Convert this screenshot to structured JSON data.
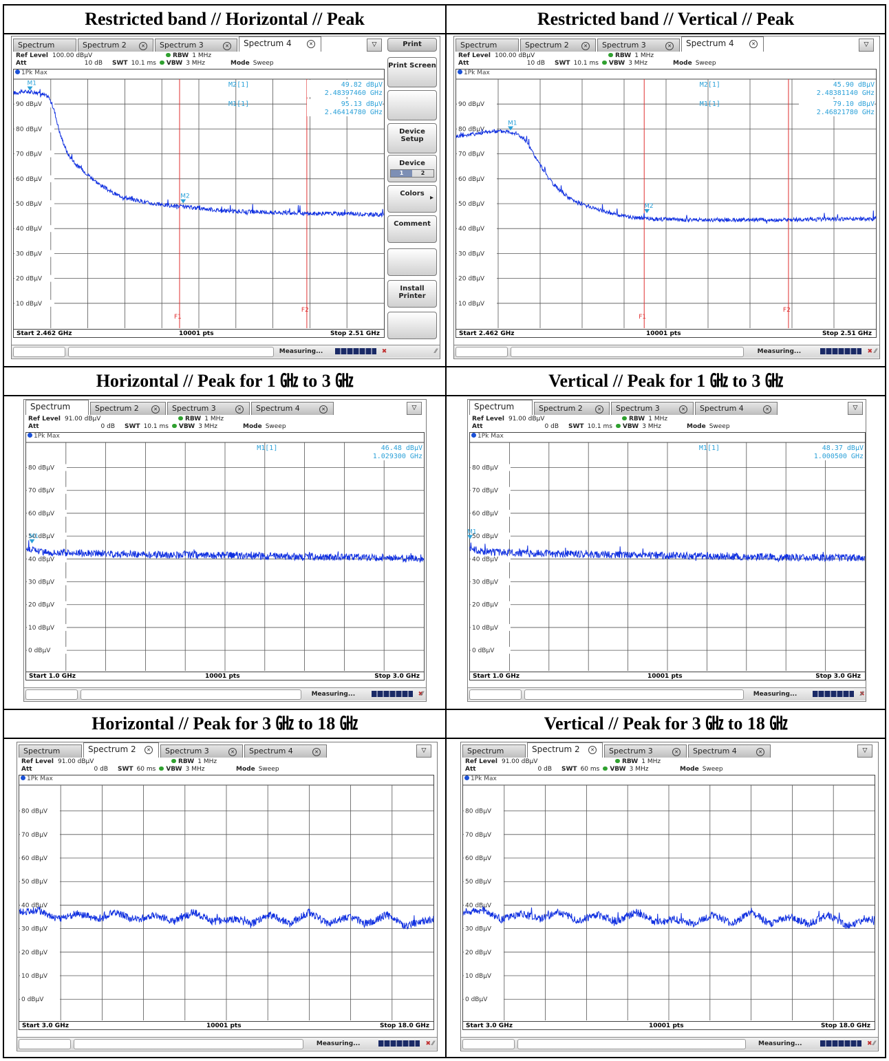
{
  "panels": [
    {
      "title": "Restricted band // Horizontal // Peak",
      "tabs": [
        {
          "label": "Spectrum",
          "close": false
        },
        {
          "label": "Spectrum 2",
          "close": true
        },
        {
          "label": "Spectrum 3",
          "close": true
        },
        {
          "label": "Spectrum 4",
          "close": true
        }
      ],
      "active_tab": 3,
      "ref_level_label": "Ref Level",
      "ref_level": "100.00 dBµV",
      "att_label": "Att",
      "att": "10 dB",
      "swt_label": "SWT",
      "swt": "10.1 ms",
      "rbw_label": "RBW",
      "rbw": "1 MHz",
      "vbw_label": "VBW",
      "vbw": "3 MHz",
      "mode_label": "Mode",
      "mode": "Sweep",
      "trace_label": "1Pk Max",
      "marker_readouts": [
        {
          "name": "M2[1]",
          "level": "49.82 dBµV",
          "freq": "2.48397460 GHz"
        },
        {
          "name": "M1[1]",
          "level": "95.13 dBµV",
          "freq": "2.46414780 GHz"
        }
      ],
      "start": "Start 2.462 GHz",
      "pts": "10001 pts",
      "stop": "Stop 2.51 GHz",
      "status": "Measuring...",
      "softkeys": [
        "Print",
        "Print Screen",
        "",
        "Device Setup",
        "Device",
        "Colors",
        "Comment",
        "",
        "Install Printer",
        ""
      ],
      "device_options": [
        "1",
        "2"
      ],
      "chart_data": {
        "type": "line",
        "xlim": [
          2.462,
          2.51
        ],
        "ylim": [
          0,
          100
        ],
        "yticks": [
          "90 dBµV",
          "80 dBµV",
          "70 dBµV",
          "60 dBµV",
          "50 dBµV",
          "40 dBµV",
          "30 dBµV",
          "20 dBµV",
          "10 dBµV"
        ],
        "trace": {
          "x": [
            2.462,
            2.4635,
            2.465,
            2.4665,
            2.4672,
            2.468,
            2.469,
            2.47,
            2.4715,
            2.473,
            2.475,
            2.477,
            2.48,
            2.483,
            2.4865,
            2.49,
            2.495,
            2.5,
            2.505,
            2.51
          ],
          "y": [
            94.5,
            95,
            94.6,
            93,
            88,
            78,
            70,
            66,
            62,
            58,
            54,
            52,
            50,
            49,
            48,
            47,
            46.5,
            46,
            46,
            45.5
          ]
        },
        "markers": [
          {
            "label": "M1",
            "x": 2.4641,
            "y": 95.13
          },
          {
            "label": "M2",
            "x": 2.48397,
            "y": 49.82
          }
        ],
        "lines": [
          {
            "label": "F1",
            "x": 2.4835
          },
          {
            "label": "F2",
            "x": 2.5
          }
        ]
      }
    },
    {
      "title": "Restricted band // Vertical // Peak",
      "tabs": [
        {
          "label": "Spectrum",
          "close": false
        },
        {
          "label": "Spectrum 2",
          "close": true
        },
        {
          "label": "Spectrum 3",
          "close": true
        },
        {
          "label": "Spectrum 4",
          "close": true
        }
      ],
      "active_tab": 3,
      "ref_level_label": "Ref Level",
      "ref_level": "100.00 dBµV",
      "att_label": "Att",
      "att": "10 dB",
      "swt_label": "SWT",
      "swt": "10.1 ms",
      "rbw_label": "RBW",
      "rbw": "1 MHz",
      "vbw_label": "VBW",
      "vbw": "3 MHz",
      "mode_label": "Mode",
      "mode": "Sweep",
      "trace_label": "1Pk Max",
      "marker_readouts": [
        {
          "name": "M2[1]",
          "level": "45.90 dBµV",
          "freq": "2.48381140 GHz"
        },
        {
          "name": "M1[1]",
          "level": "79.10 dBµV",
          "freq": "2.46821780 GHz"
        }
      ],
      "start": "Start 2.462 GHz",
      "pts": "10001 pts",
      "stop": "Stop 2.51 GHz",
      "status": "Measuring...",
      "chart_data": {
        "type": "line",
        "xlim": [
          2.462,
          2.51
        ],
        "ylim": [
          0,
          100
        ],
        "yticks": [
          "90 dBµV",
          "80 dBµV",
          "70 dBµV",
          "60 dBµV",
          "50 dBµV",
          "40 dBµV",
          "30 dBµV",
          "20 dBµV",
          "10 dBµV"
        ],
        "trace": {
          "x": [
            2.462,
            2.464,
            2.466,
            2.468,
            2.469,
            2.47,
            2.4715,
            2.473,
            2.475,
            2.477,
            2.479,
            2.481,
            2.4838,
            2.488,
            2.495,
            2.5,
            2.505,
            2.51
          ],
          "y": [
            77,
            78,
            79,
            79.1,
            78,
            75,
            66,
            58,
            52,
            49,
            47,
            45,
            44,
            43.5,
            43.5,
            43.5,
            43.8,
            44
          ]
        },
        "markers": [
          {
            "label": "M1",
            "x": 2.46822,
            "y": 79.1
          },
          {
            "label": "M2",
            "x": 2.48381,
            "y": 45.9
          }
        ],
        "lines": [
          {
            "label": "F1",
            "x": 2.4835
          },
          {
            "label": "F2",
            "x": 2.5
          }
        ]
      }
    },
    {
      "title": "Horizontal // Peak for 1 ㎓ to 3 ㎓",
      "tabs": [
        {
          "label": "Spectrum",
          "close": false
        },
        {
          "label": "Spectrum 2",
          "close": true
        },
        {
          "label": "Spectrum 3",
          "close": true
        },
        {
          "label": "Spectrum 4",
          "close": true
        }
      ],
      "active_tab": 0,
      "ref_level_label": "Ref Level",
      "ref_level": "91.00 dBµV",
      "att_label": "Att",
      "att": "0 dB",
      "swt_label": "SWT",
      "swt": "10.1 ms",
      "rbw_label": "RBW",
      "rbw": "1 MHz",
      "vbw_label": "VBW",
      "vbw": "3 MHz",
      "mode_label": "Mode",
      "mode": "Sweep",
      "trace_label": "1Pk Max",
      "marker_readouts": [
        {
          "name": "M1[1]",
          "level": "46.48 dBµV",
          "freq": "1.029300 GHz"
        }
      ],
      "start": "Start 1.0 GHz",
      "pts": "10001 pts",
      "stop": "Stop 3.0 GHz",
      "status": "Measuring...",
      "chart_data": {
        "type": "line",
        "xlim": [
          1.0,
          3.0
        ],
        "ylim": [
          -9,
          91
        ],
        "yticks": [
          "80 dBµV",
          "70 dBµV",
          "60 dBµV",
          "50 dBµV",
          "40 dBµV",
          "30 dBµV",
          "20 dBµV",
          "10 dBµV",
          "0 dBµV"
        ],
        "trace": {
          "x": [
            1.0,
            1.03,
            1.1,
            1.3,
            1.6,
            2.0,
            2.4,
            2.8,
            3.0
          ],
          "y": [
            44.5,
            44,
            43,
            42.5,
            42,
            41.5,
            41,
            40.5,
            40
          ]
        },
        "markers": [
          {
            "label": "M1",
            "x": 1.0293,
            "y": 46.48
          }
        ],
        "lines": []
      }
    },
    {
      "title": "Vertical // Peak for 1 ㎓ to 3 ㎓",
      "tabs": [
        {
          "label": "Spectrum",
          "close": false
        },
        {
          "label": "Spectrum 2",
          "close": true
        },
        {
          "label": "Spectrum 3",
          "close": true
        },
        {
          "label": "Spectrum 4",
          "close": true
        }
      ],
      "active_tab": 0,
      "ref_level_label": "Ref Level",
      "ref_level": "91.00 dBµV",
      "att_label": "Att",
      "att": "0 dB",
      "swt_label": "SWT",
      "swt": "10.1 ms",
      "rbw_label": "RBW",
      "rbw": "1 MHz",
      "vbw_label": "VBW",
      "vbw": "3 MHz",
      "mode_label": "Mode",
      "mode": "Sweep",
      "trace_label": "1Pk Max",
      "marker_readouts": [
        {
          "name": "M1[1]",
          "level": "48.37 dBµV",
          "freq": "1.000500 GHz"
        }
      ],
      "start": "Start 1.0 GHz",
      "pts": "10001 pts",
      "stop": "Stop 3.0 GHz",
      "status": "Measuring...",
      "chart_data": {
        "type": "line",
        "xlim": [
          1.0,
          3.0
        ],
        "ylim": [
          -9,
          91
        ],
        "yticks": [
          "80 dBµV",
          "70 dBµV",
          "60 dBµV",
          "50 dBµV",
          "40 dBµV",
          "30 dBµV",
          "20 dBµV",
          "10 dBµV",
          "0 dBµV"
        ],
        "trace": {
          "x": [
            1.0,
            1.02,
            1.1,
            1.3,
            1.6,
            2.0,
            2.4,
            2.8,
            3.0
          ],
          "y": [
            45,
            44,
            43,
            42.5,
            42,
            41.5,
            41,
            40.5,
            40.5
          ]
        },
        "markers": [
          {
            "label": "M1",
            "x": 1.0005,
            "y": 48.37
          }
        ],
        "lines": []
      }
    },
    {
      "title": "Horizontal // Peak for 3 ㎓ to 18 ㎓",
      "tabs": [
        {
          "label": "Spectrum",
          "close": false
        },
        {
          "label": "Spectrum 2",
          "close": true
        },
        {
          "label": "Spectrum 3",
          "close": true
        },
        {
          "label": "Spectrum 4",
          "close": true
        }
      ],
      "active_tab": 1,
      "ref_level_label": "Ref Level",
      "ref_level": "91.00 dBµV",
      "att_label": "Att",
      "att": "0 dB",
      "swt_label": "SWT",
      "swt": "60 ms",
      "rbw_label": "RBW",
      "rbw": "1 MHz",
      "vbw_label": "VBW",
      "vbw": "3 MHz",
      "mode_label": "Mode",
      "mode": "Sweep",
      "trace_label": "1Pk Max",
      "marker_readouts": [],
      "start": "Start 3.0 GHz",
      "pts": "10001 pts",
      "stop": "Stop 18.0 GHz",
      "status": "Measuring...",
      "chart_data": {
        "type": "line",
        "xlim": [
          3.0,
          18.0
        ],
        "ylim": [
          -9,
          91
        ],
        "yticks": [
          "80 dBµV",
          "70 dBµV",
          "60 dBµV",
          "50 dBµV",
          "40 dBµV",
          "30 dBµV",
          "20 dBµV",
          "10 dBµV",
          "0 dBµV"
        ],
        "trace": {
          "x": [
            3.0,
            3.7,
            4.4,
            5.1,
            5.8,
            6.5,
            7.2,
            7.9,
            8.6,
            9.3,
            10.0,
            10.7,
            11.4,
            12.1,
            12.8,
            13.5,
            14.2,
            14.9,
            15.6,
            16.3,
            17.0,
            17.5,
            18.0
          ],
          "y": [
            37,
            38,
            34,
            36.5,
            34,
            37,
            33.5,
            36,
            33,
            37,
            33,
            34,
            32,
            36,
            32,
            37,
            32,
            35,
            32,
            36,
            31,
            33,
            34
          ]
        },
        "markers": [],
        "lines": []
      }
    },
    {
      "title": "Vertical // Peak for 3 ㎓ to 18 ㎓",
      "tabs": [
        {
          "label": "Spectrum",
          "close": false
        },
        {
          "label": "Spectrum 2",
          "close": true
        },
        {
          "label": "Spectrum 3",
          "close": true
        },
        {
          "label": "Spectrum 4",
          "close": true
        }
      ],
      "active_tab": 1,
      "ref_level_label": "Ref Level",
      "ref_level": "91.00 dBµV",
      "att_label": "Att",
      "att": "0 dB",
      "swt_label": "SWT",
      "swt": "60 ms",
      "rbw_label": "RBW",
      "rbw": "1 MHz",
      "vbw_label": "VBW",
      "vbw": "3 MHz",
      "mode_label": "Mode",
      "mode": "Sweep",
      "trace_label": "1Pk Max",
      "marker_readouts": [],
      "start": "Start 3.0 GHz",
      "pts": "10001 pts",
      "stop": "Stop 18.0 GHz",
      "status": "Measuring...",
      "chart_data": {
        "type": "line",
        "xlim": [
          3.0,
          18.0
        ],
        "ylim": [
          -9,
          91
        ],
        "yticks": [
          "80 dBµV",
          "70 dBµV",
          "60 dBµV",
          "50 dBµV",
          "40 dBµV",
          "30 dBµV",
          "20 dBµV",
          "10 dBµV",
          "0 dBµV"
        ],
        "trace": {
          "x": [
            3.0,
            3.7,
            4.4,
            5.1,
            5.8,
            6.5,
            7.2,
            7.9,
            8.6,
            9.3,
            10.0,
            10.7,
            11.4,
            12.1,
            12.8,
            13.5,
            14.2,
            14.9,
            15.6,
            16.3,
            17.0,
            17.5,
            18.0
          ],
          "y": [
            37,
            38,
            34,
            36.5,
            34,
            37,
            33.5,
            36,
            33,
            37,
            33,
            34,
            32,
            36,
            32,
            37,
            32,
            35,
            32,
            36,
            31,
            33,
            34
          ]
        },
        "markers": [],
        "lines": []
      }
    }
  ]
}
